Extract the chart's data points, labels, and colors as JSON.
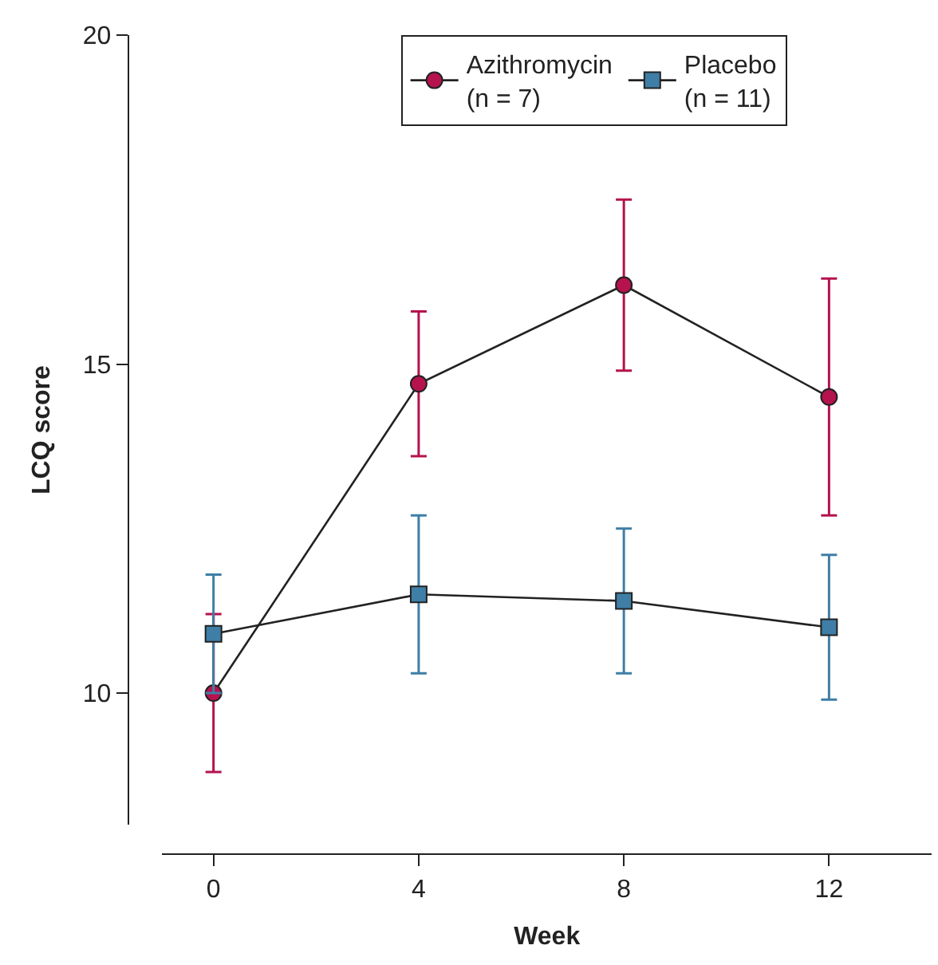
{
  "chart_data": {
    "type": "line",
    "xlabel": "Week",
    "ylabel": "LCQ score",
    "x": [
      0,
      4,
      8,
      12
    ],
    "series": [
      {
        "name": "Azithromycin\n(n = 7)",
        "color": "#b5124e",
        "marker": "circle",
        "values": [
          10.0,
          14.7,
          16.2,
          14.5
        ],
        "errors": [
          1.2,
          1.1,
          1.3,
          1.8
        ]
      },
      {
        "name": "Placebo\n(n = 11)",
        "color": "#3f7ea6",
        "marker": "square",
        "values": [
          10.9,
          11.5,
          11.4,
          11.0
        ],
        "errors": [
          0.9,
          1.2,
          1.1,
          1.1
        ]
      }
    ],
    "xlim": [
      -1,
      14
    ],
    "xticks": [
      0,
      4,
      8,
      12
    ],
    "ylim": [
      8,
      20
    ],
    "yticks": [
      10,
      15,
      20
    ],
    "legend": "top",
    "line_style": "solid"
  }
}
